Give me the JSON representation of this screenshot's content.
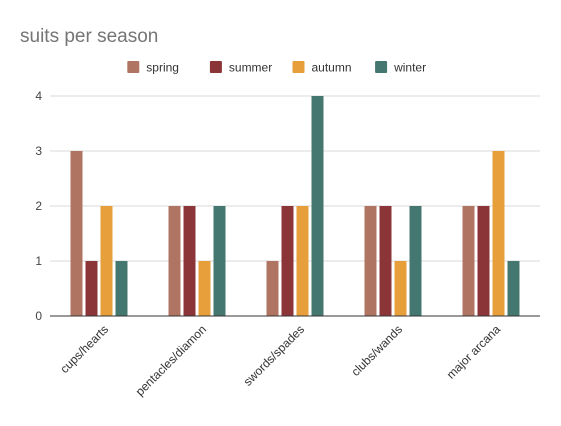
{
  "chart_data": {
    "type": "bar",
    "title": "suits per season",
    "xlabel": "",
    "ylabel": "",
    "categories": [
      "cups/hearts",
      "pentacles/diamon",
      "swords/spades",
      "clubs/wands",
      "major arcana"
    ],
    "series": [
      {
        "name": "spring",
        "color": "#b07462",
        "values": [
          3,
          2,
          1,
          2,
          2
        ]
      },
      {
        "name": "summer",
        "color": "#8c3538",
        "values": [
          1,
          2,
          2,
          2,
          2
        ]
      },
      {
        "name": "autumn",
        "color": "#e69f3b",
        "values": [
          2,
          1,
          2,
          1,
          3
        ]
      },
      {
        "name": "winter",
        "color": "#44776f",
        "values": [
          1,
          2,
          4,
          2,
          1
        ]
      }
    ],
    "ylim": [
      0,
      4
    ],
    "yticks": [
      0,
      1,
      2,
      3,
      4
    ],
    "grid": true,
    "legend": "top"
  }
}
